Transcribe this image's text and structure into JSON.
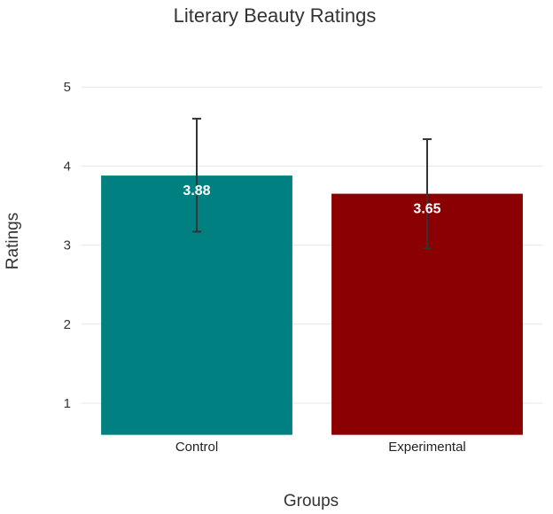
{
  "chart_data": {
    "type": "bar",
    "title": "Literary Beauty Ratings",
    "xlabel": "Groups",
    "ylabel": "Ratings",
    "categories": [
      "Control",
      "Experimental"
    ],
    "values": [
      3.88,
      3.65
    ],
    "value_labels": [
      "3.88",
      "3.65"
    ],
    "error_low": [
      3.17,
      2.96
    ],
    "error_high": [
      4.6,
      4.34
    ],
    "yticks": [
      "1",
      "2",
      "3",
      "4",
      "5"
    ],
    "ylim": [
      0.6,
      5.3
    ],
    "grid": true,
    "colors": [
      "#008080",
      "#8b0000"
    ]
  }
}
